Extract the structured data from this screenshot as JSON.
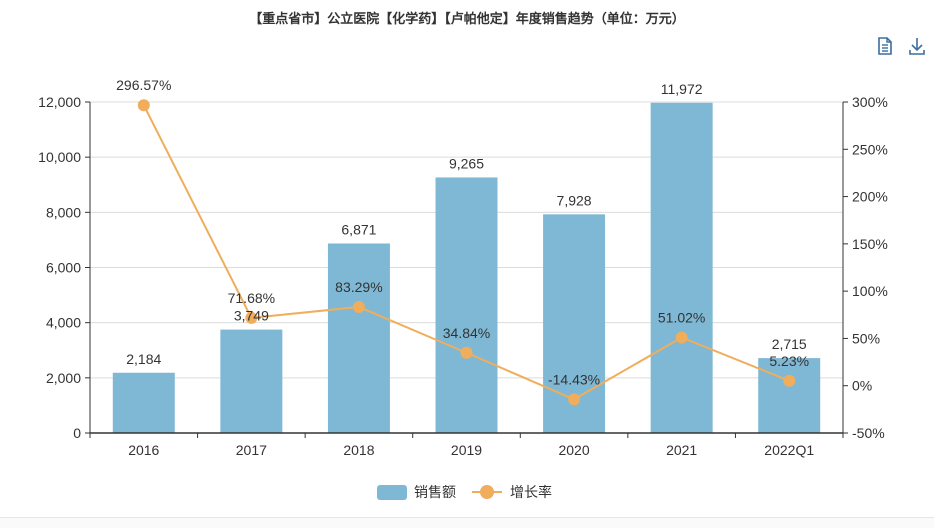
{
  "colors": {
    "bar": "#7fb8d4",
    "line": "#f0ad5b",
    "axis": "#333333",
    "grid": "#dcdcdc",
    "text": "#333333",
    "icon": "#3b6e9e"
  },
  "toolbar": {
    "data_view_icon": "document-icon",
    "download_icon": "download-icon"
  },
  "chart_data": {
    "type": "bar",
    "title": "【重点省市】公立医院【化学药】【卢帕他定】年度销售趋势（单位：万元）",
    "categories": [
      "2016",
      "2017",
      "2018",
      "2019",
      "2020",
      "2021",
      "2022Q1"
    ],
    "series": [
      {
        "name": "销售额",
        "type": "bar",
        "axis": "left",
        "values": [
          2184,
          3749,
          6871,
          9265,
          7928,
          11972,
          2715
        ],
        "labels": [
          "2,184",
          "3,749",
          "6,871",
          "9,265",
          "7,928",
          "11,972",
          "2,715"
        ]
      },
      {
        "name": "增长率",
        "type": "line",
        "axis": "right",
        "values": [
          296.57,
          71.68,
          83.29,
          34.84,
          -14.43,
          51.02,
          5.23
        ],
        "labels": [
          "296.57%",
          "71.68%",
          "83.29%",
          "34.84%",
          "-14.43%",
          "51.02%",
          "5.23%"
        ]
      }
    ],
    "y_left": {
      "min": 0,
      "max": 12000,
      "ticks": [
        "0",
        "2,000",
        "4,000",
        "6,000",
        "8,000",
        "10,000",
        "12,000"
      ]
    },
    "y_right": {
      "min": -50,
      "max": 300,
      "ticks": [
        "-50%",
        "0%",
        "50%",
        "100%",
        "150%",
        "200%",
        "250%",
        "300%"
      ]
    },
    "grid": true,
    "legend_position": "bottom-center"
  }
}
